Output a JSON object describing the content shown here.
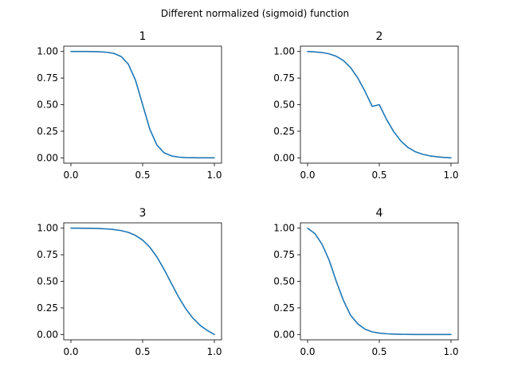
{
  "figure": {
    "suptitle": "Different normalized (sigmoid) function",
    "line_color": "#1f77b4"
  },
  "chart_data": [
    {
      "type": "line",
      "title": "1",
      "xlim": [
        -0.05,
        1.05
      ],
      "ylim": [
        -0.05,
        1.05
      ],
      "xticks": [
        0.0,
        0.5,
        1.0
      ],
      "xtick_labels": [
        "0.0",
        "0.5",
        "1.0"
      ],
      "yticks": [
        0.0,
        0.25,
        0.5,
        0.75,
        1.0
      ],
      "ytick_labels": [
        "0.00",
        "0.25",
        "0.50",
        "0.75",
        "1.00"
      ],
      "grid": false,
      "series": [
        {
          "x": [
            0.0,
            0.05,
            0.1,
            0.15,
            0.2,
            0.25,
            0.3,
            0.35,
            0.4,
            0.45,
            0.5,
            0.55,
            0.6,
            0.65,
            0.7,
            0.75,
            0.8,
            0.85,
            0.9,
            0.95,
            1.0
          ],
          "y": [
            1.0,
            1.0,
            1.0,
            0.999,
            0.997,
            0.993,
            0.982,
            0.953,
            0.881,
            0.731,
            0.5,
            0.269,
            0.119,
            0.047,
            0.018,
            0.007,
            0.002,
            0.001,
            0.0,
            0.0,
            0.0
          ]
        }
      ]
    },
    {
      "type": "line",
      "title": "2",
      "xlim": [
        -0.05,
        1.05
      ],
      "ylim": [
        -0.05,
        1.05
      ],
      "xticks": [
        0.0,
        0.5,
        1.0
      ],
      "xtick_labels": [
        "0.0",
        "0.5",
        "1.0"
      ],
      "yticks": [
        0.0,
        0.25,
        0.5,
        0.75,
        1.0
      ],
      "ytick_labels": [
        "0.00",
        "0.25",
        "0.50",
        "0.75",
        "1.00"
      ],
      "grid": false,
      "series": [
        {
          "x": [
            0.0,
            0.05,
            0.1,
            0.15,
            0.2,
            0.25,
            0.3,
            0.35,
            0.4,
            0.45,
            0.5,
            0.55,
            0.6,
            0.65,
            0.7,
            0.75,
            0.8,
            0.85,
            0.9,
            0.95,
            1.0
          ],
          "y": [
            1.0,
            0.996,
            0.99,
            0.978,
            0.955,
            0.914,
            0.848,
            0.751,
            0.626,
            0.484,
            0.5,
            0.362,
            0.247,
            0.158,
            0.097,
            0.058,
            0.034,
            0.019,
            0.01,
            0.004,
            0.0
          ]
        }
      ]
    },
    {
      "type": "line",
      "title": "3",
      "xlim": [
        -0.05,
        1.05
      ],
      "ylim": [
        -0.05,
        1.05
      ],
      "xticks": [
        0.0,
        0.5,
        1.0
      ],
      "xtick_labels": [
        "0.0",
        "0.5",
        "1.0"
      ],
      "yticks": [
        0.0,
        0.25,
        0.5,
        0.75,
        1.0
      ],
      "ytick_labels": [
        "0.00",
        "0.25",
        "0.50",
        "0.75",
        "1.00"
      ],
      "grid": false,
      "series": [
        {
          "x": [
            0.0,
            0.05,
            0.1,
            0.15,
            0.2,
            0.25,
            0.3,
            0.35,
            0.4,
            0.45,
            0.5,
            0.55,
            0.6,
            0.65,
            0.7,
            0.75,
            0.8,
            0.85,
            0.9,
            0.95,
            1.0
          ],
          "y": [
            1.0,
            1.0,
            0.999,
            0.998,
            0.996,
            0.993,
            0.987,
            0.977,
            0.96,
            0.932,
            0.888,
            0.821,
            0.728,
            0.611,
            0.481,
            0.354,
            0.243,
            0.154,
            0.087,
            0.038,
            0.0
          ]
        }
      ]
    },
    {
      "type": "line",
      "title": "4",
      "xlim": [
        -0.05,
        1.05
      ],
      "ylim": [
        -0.05,
        1.05
      ],
      "xticks": [
        0.0,
        0.5,
        1.0
      ],
      "xtick_labels": [
        "0.0",
        "0.5",
        "1.0"
      ],
      "yticks": [
        0.0,
        0.25,
        0.5,
        0.75,
        1.0
      ],
      "ytick_labels": [
        "0.00",
        "0.25",
        "0.50",
        "0.75",
        "1.00"
      ],
      "grid": false,
      "series": [
        {
          "x": [
            0.0,
            0.05,
            0.1,
            0.15,
            0.2,
            0.25,
            0.3,
            0.35,
            0.4,
            0.45,
            0.5,
            0.55,
            0.6,
            0.65,
            0.7,
            0.75,
            0.8,
            0.85,
            0.9,
            0.95,
            1.0
          ],
          "y": [
            1.0,
            0.95,
            0.85,
            0.7,
            0.5,
            0.32,
            0.18,
            0.1,
            0.05,
            0.025,
            0.013,
            0.007,
            0.004,
            0.002,
            0.001,
            0.0,
            0.0,
            0.0,
            0.0,
            0.0,
            0.0
          ]
        }
      ]
    }
  ]
}
